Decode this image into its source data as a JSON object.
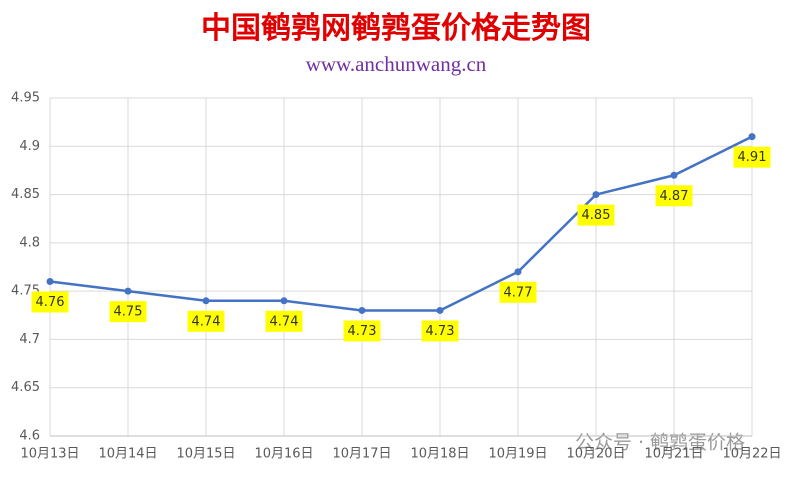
{
  "chart_data": {
    "type": "line",
    "title": "中国鹌鹑网鹌鹑蛋价格走势图",
    "subtitle": "www.anchunwang.cn",
    "watermark": "公众号 · 鹌鹑蛋价格",
    "categories": [
      "10月13日",
      "10月14日",
      "10月15日",
      "10月16日",
      "10月17日",
      "10月18日",
      "10月19日",
      "10月20日",
      "10月21日",
      "10月22日"
    ],
    "values": [
      4.76,
      4.75,
      4.74,
      4.74,
      4.73,
      4.73,
      4.77,
      4.85,
      4.87,
      4.91
    ],
    "color": "#4472c4",
    "ylim": [
      4.6,
      4.95
    ],
    "yticks": [
      4.6,
      4.65,
      4.7,
      4.75,
      4.8,
      4.85,
      4.9,
      4.95
    ],
    "grid": true
  }
}
